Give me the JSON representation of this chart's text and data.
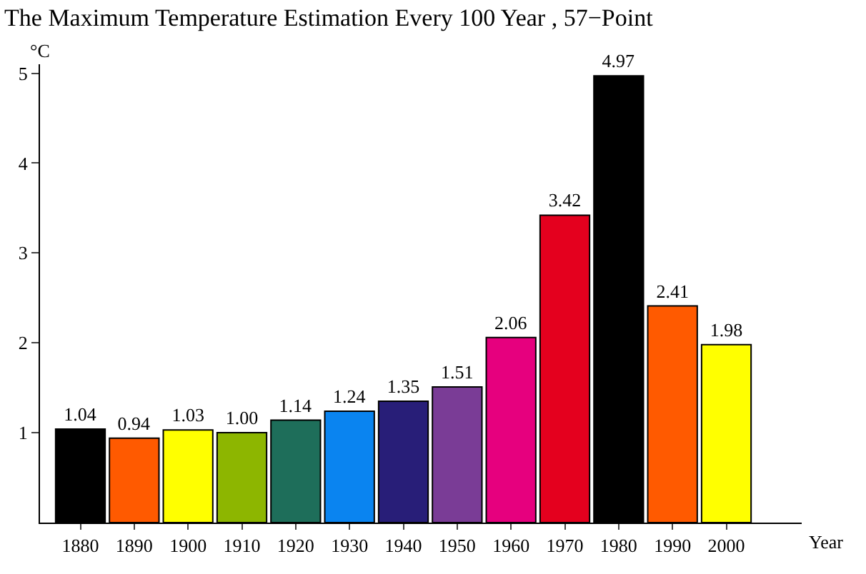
{
  "chart_data": {
    "type": "bar",
    "title": "The Maximum Temperature Estimation Every 100 Year , 57−Point",
    "xlabel": "Year",
    "ylabel": "°C",
    "categories": [
      "1880",
      "1890",
      "1900",
      "1910",
      "1920",
      "1930",
      "1940",
      "1950",
      "1960",
      "1970",
      "1980",
      "1990",
      "2000"
    ],
    "values": [
      1.04,
      0.94,
      1.03,
      1.0,
      1.14,
      1.24,
      1.35,
      1.51,
      2.06,
      3.42,
      4.97,
      2.41,
      1.98
    ],
    "value_labels": [
      "1.04",
      "0.94",
      "1.03",
      "1.00",
      "1.14",
      "1.24",
      "1.35",
      "1.51",
      "2.06",
      "3.42",
      "4.97",
      "2.41",
      "1.98"
    ],
    "colors": [
      "#000000",
      "#ff5a00",
      "#ffff00",
      "#8db600",
      "#1e6e5a",
      "#0a84f0",
      "#281e78",
      "#7a3c96",
      "#e6007e",
      "#e4001e",
      "#000000",
      "#ff5a00",
      "#ffff00"
    ],
    "ylim": [
      0,
      5.1
    ],
    "yticks": [
      1,
      2,
      3,
      4,
      5
    ]
  }
}
